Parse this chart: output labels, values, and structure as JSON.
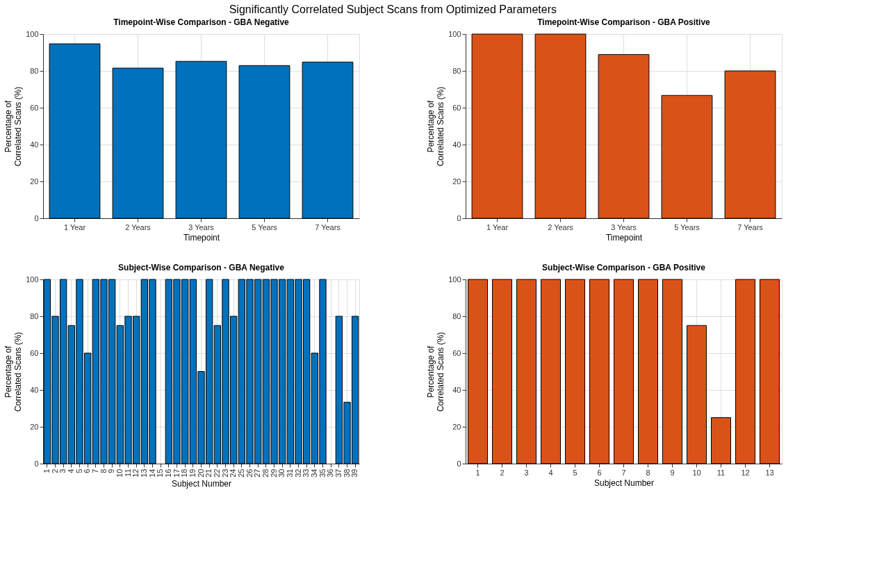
{
  "chart_data": [
    {
      "type": "bar",
      "title": "Timepoint-Wise Comparison - GBA Negative",
      "xlabel": "Timepoint",
      "ylabel": "Percentage of\nCorrelated Scans (%)",
      "annotations": [
        "Significantly Correlated Subject Scans from Optimized Parameters"
      ],
      "categories": [
        "1 Year",
        "2 Years",
        "3 Years",
        "5 Years",
        "7 Years"
      ],
      "values": [
        94.7,
        81.5,
        85.2,
        82.9,
        84.8
      ],
      "color": "#0072bd",
      "ylim": [
        0,
        100
      ],
      "yticks": [
        0,
        20,
        40,
        60,
        80,
        100
      ],
      "grid": true
    },
    {
      "type": "bar",
      "title": "Timepoint-Wise Comparison - GBA Positive",
      "xlabel": "Timepoint",
      "ylabel": "Percentage of\nCorrelated Scans (%)",
      "categories": [
        "1 Year",
        "2 Years",
        "3 Years",
        "5 Years",
        "7 Years"
      ],
      "values": [
        100,
        100,
        88.9,
        66.7,
        80
      ],
      "color": "#d95319",
      "ylim": [
        0,
        100
      ],
      "yticks": [
        0,
        20,
        40,
        60,
        80,
        100
      ],
      "grid": true
    },
    {
      "type": "bar",
      "title": "Subject-Wise Comparison - GBA Negative",
      "xlabel": "Subject Number",
      "ylabel": "Percentage of\nCorrelated Scans (%)",
      "categories": [
        "1",
        "2",
        "3",
        "4",
        "5",
        "6",
        "7",
        "8",
        "9",
        "10",
        "11",
        "12",
        "13",
        "14",
        "15",
        "16",
        "17",
        "18",
        "19",
        "20",
        "21",
        "22",
        "23",
        "24",
        "25",
        "26",
        "27",
        "28",
        "29",
        "30",
        "31",
        "32",
        "33",
        "34",
        "35",
        "36",
        "37",
        "38",
        "39"
      ],
      "values": [
        100,
        80,
        100,
        75,
        100,
        60,
        100,
        100,
        100,
        75,
        80,
        80,
        100,
        100,
        0,
        100,
        100,
        100,
        100,
        50,
        100,
        75,
        100,
        80,
        100,
        100,
        100,
        100,
        100,
        100,
        100,
        100,
        100,
        60,
        100,
        0,
        80,
        33.3,
        80
      ],
      "color": "#0072bd",
      "ylim": [
        0,
        100
      ],
      "yticks": [
        0,
        20,
        40,
        60,
        80,
        100
      ],
      "grid": true
    },
    {
      "type": "bar",
      "title": "Subject-Wise Comparison - GBA Positive",
      "xlabel": "Subject Number",
      "ylabel": "Percentage of\nCorrelated Scans (%)",
      "categories": [
        "1",
        "2",
        "3",
        "4",
        "5",
        "6",
        "7",
        "8",
        "9",
        "10",
        "11",
        "12",
        "13"
      ],
      "values": [
        100,
        100,
        100,
        100,
        100,
        100,
        100,
        100,
        100,
        75,
        25,
        100,
        100
      ],
      "color": "#d95319",
      "ylim": [
        0,
        100
      ],
      "yticks": [
        0,
        20,
        40,
        60,
        80,
        100
      ],
      "grid": true
    }
  ]
}
